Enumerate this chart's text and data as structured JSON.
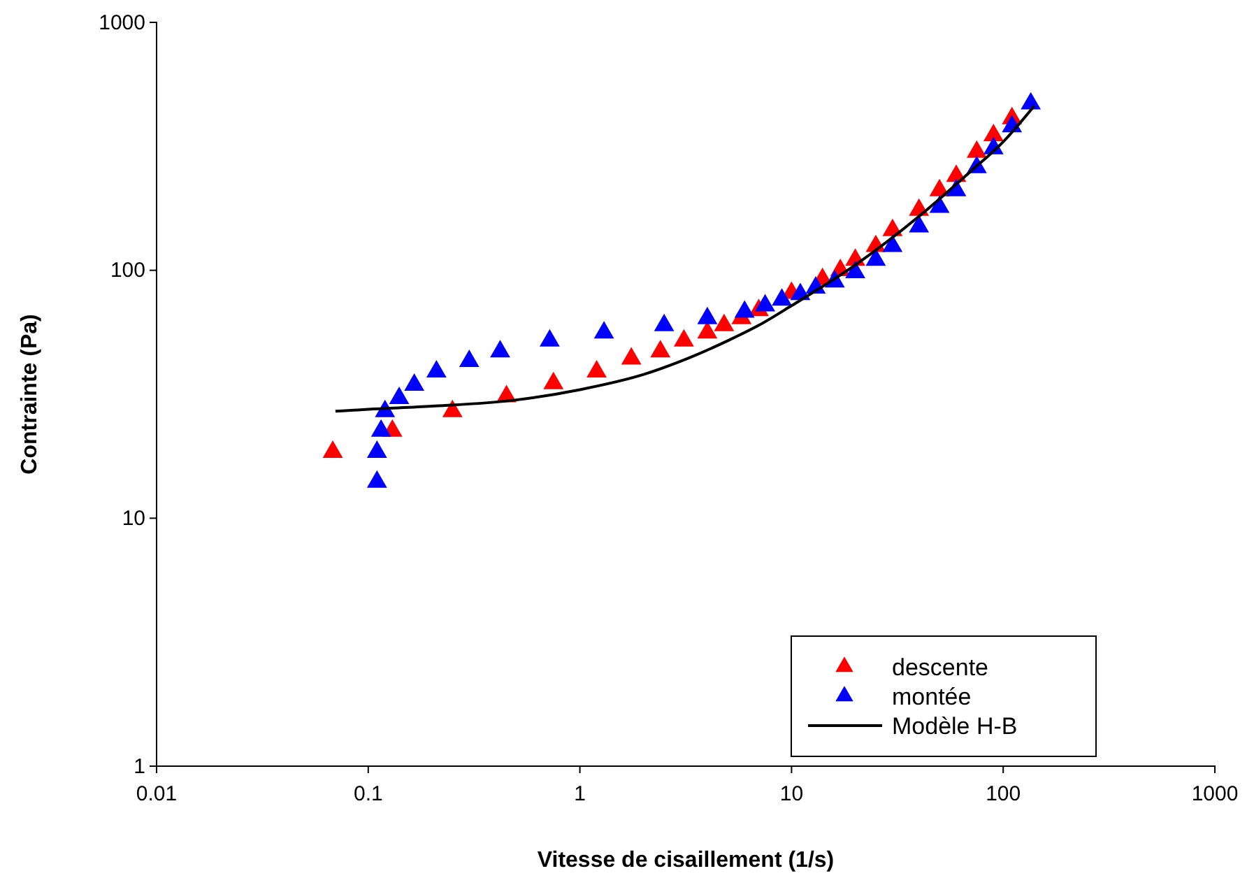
{
  "chart_data": {
    "type": "scatter",
    "xlabel": "Vitesse de cisaillement (1/s)",
    "ylabel": "Contrainte (Pa)",
    "log": "xy",
    "xlim": [
      0.01,
      1000
    ],
    "ylim": [
      1,
      1000
    ],
    "xticks": [
      0.01,
      0.1,
      1,
      10,
      100,
      1000
    ],
    "yticks": [
      1,
      10,
      100,
      1000
    ],
    "grid": false,
    "legend": "bottom right",
    "marker": "triangle",
    "series": [
      {
        "name": "descente",
        "color": "#ff0000",
        "x": [
          0.068,
          0.13,
          0.25,
          0.45,
          0.75,
          1.2,
          1.75,
          2.4,
          3.1,
          4,
          4.8,
          5.8,
          7,
          10,
          14,
          17,
          20,
          25,
          30,
          40,
          50,
          60,
          75,
          90,
          110
        ],
        "values": [
          18.5,
          22.5,
          27,
          31,
          35,
          39,
          44,
          47,
          52,
          56,
          60,
          64,
          69,
          81,
          92,
          100,
          110,
          125,
          145,
          175,
          210,
          240,
          300,
          350,
          410
        ]
      },
      {
        "name": "montée",
        "color": "#0000ff",
        "x": [
          0.11,
          0.11,
          0.115,
          0.12,
          0.14,
          0.165,
          0.21,
          0.3,
          0.42,
          0.72,
          1.3,
          2.5,
          4,
          6,
          7.5,
          9,
          11,
          13,
          16,
          20,
          25,
          30,
          40,
          50,
          60,
          75,
          90,
          110,
          135
        ],
        "values": [
          14,
          18.5,
          22.5,
          27,
          30.5,
          34.5,
          39,
          43,
          47,
          52,
          56,
          60,
          64,
          68,
          72,
          76,
          80,
          85,
          90,
          98,
          110,
          125,
          150,
          180,
          210,
          260,
          310,
          380,
          470
        ]
      },
      {
        "name": "Modèle H-B",
        "type": "line",
        "color": "#000000",
        "marker": "none",
        "line_style": "solid",
        "x": [
          0.07,
          0.1,
          0.2,
          0.5,
          1,
          2,
          3,
          5,
          7,
          10,
          20,
          40,
          70,
          100,
          140
        ],
        "values": [
          27,
          27.5,
          28.3,
          30,
          33,
          38,
          43,
          52,
          60,
          72,
          105,
          165,
          250,
          330,
          460
        ]
      }
    ]
  }
}
